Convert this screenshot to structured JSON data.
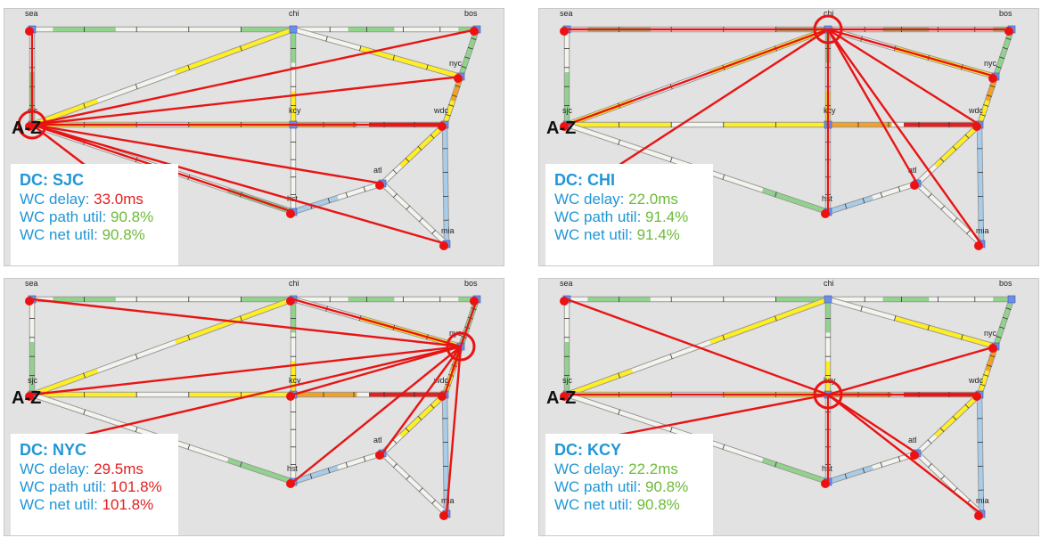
{
  "colors": {
    "panel_bg": "#e2e2e2",
    "link_white": "#f4f4ee",
    "link_green": "#8fd48a",
    "link_yellow": "#ffee22",
    "link_orange": "#f4a020",
    "link_red": "#e42020",
    "link_blue": "#a8cdea",
    "node_blue": "#6d8ee8",
    "node_red": "#ee1111",
    "label_blue": "#2196d6",
    "value_green": "#6dba3a",
    "value_red": "#e22020"
  },
  "az_label": "A-Z",
  "nodes": [
    {
      "id": "sea",
      "label": "sea"
    },
    {
      "id": "chi",
      "label": "chi"
    },
    {
      "id": "bos",
      "label": "bos"
    },
    {
      "id": "nyc",
      "label": "nyc"
    },
    {
      "id": "sjc",
      "label": "sjc"
    },
    {
      "id": "kcy",
      "label": "kcy"
    },
    {
      "id": "wdc",
      "label": "wdc"
    },
    {
      "id": "atl",
      "label": "atl"
    },
    {
      "id": "hst",
      "label": "hst"
    },
    {
      "id": "mia",
      "label": "mia"
    }
  ],
  "panels": [
    {
      "dc_label": "DC:",
      "dc": "SJC",
      "center": "sjc",
      "delay_label": "WC delay:",
      "delay": "33.0ms",
      "delay_status": "red",
      "path_label": "WC path util:",
      "path_util": "90.8%",
      "path_status": "green",
      "net_label": "WC net util:",
      "net_util": "90.8%",
      "net_status": "green",
      "red_nodes": [
        "sea",
        "bos",
        "nyc",
        "sjc",
        "wdc",
        "atl",
        "hst",
        "mia"
      ]
    },
    {
      "dc_label": "DC:",
      "dc": "CHI",
      "center": "chi",
      "delay_label": "WC delay:",
      "delay": "22.0ms",
      "delay_status": "green",
      "path_label": "WC path util:",
      "path_util": "91.4%",
      "path_status": "green",
      "net_label": "WC net util:",
      "net_util": "91.4%",
      "net_status": "green",
      "red_nodes": [
        "sea",
        "bos",
        "nyc",
        "sjc",
        "wdc",
        "atl",
        "hst",
        "mia"
      ]
    },
    {
      "dc_label": "DC:",
      "dc": "NYC",
      "center": "nyc",
      "delay_label": "WC delay:",
      "delay": "29.5ms",
      "delay_status": "red",
      "path_label": "WC path util:",
      "path_util": "101.8%",
      "path_status": "red",
      "net_label": "WC net util:",
      "net_util": "101.8%",
      "net_status": "red",
      "red_nodes": [
        "sea",
        "chi",
        "bos",
        "sjc",
        "kcy",
        "wdc",
        "atl",
        "hst",
        "mia"
      ]
    },
    {
      "dc_label": "DC:",
      "dc": "KCY",
      "center": "kcy",
      "delay_label": "WC delay:",
      "delay": "22.2ms",
      "delay_status": "green",
      "path_label": "WC path util:",
      "path_util": "90.8%",
      "path_status": "green",
      "net_label": "WC net util:",
      "net_util": "90.8%",
      "net_status": "green",
      "red_nodes": [
        "sea",
        "nyc",
        "sjc",
        "wdc",
        "atl",
        "hst",
        "mia"
      ]
    }
  ]
}
